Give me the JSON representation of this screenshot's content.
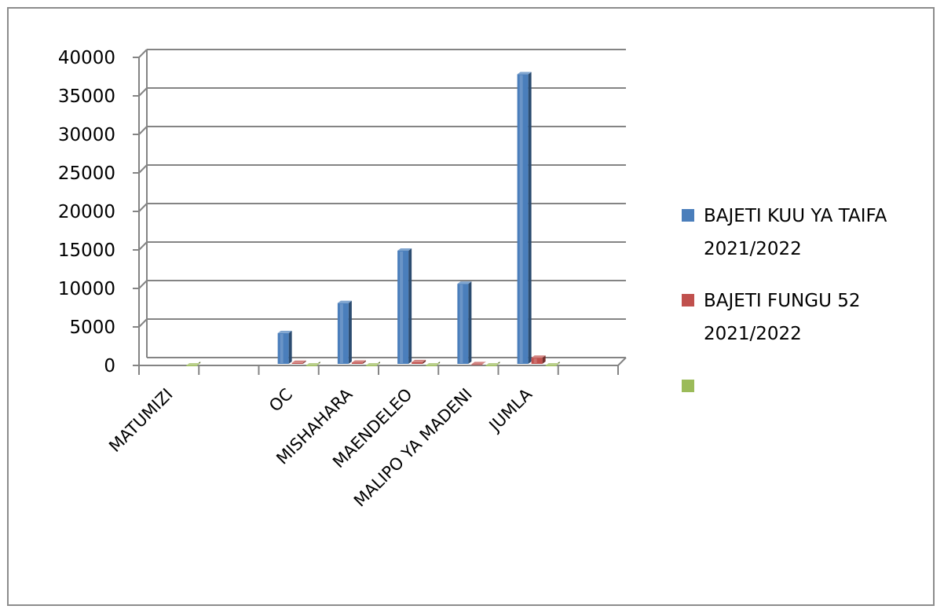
{
  "chart_data": {
    "type": "bar",
    "categories": [
      "MATUMIZI",
      "OC",
      "MISHAHARA",
      "MAENDELEO",
      "MALIPO YA MADENI",
      "JUMLA"
    ],
    "series": [
      {
        "name": "BAJETI KUU YA TAIFA 2021/2022",
        "color": "#4a7ebb",
        "values": [
          null,
          4200,
          8100,
          14900,
          10600,
          37800
        ]
      },
      {
        "name": "BAJETI FUNGU 52 2021/2022",
        "color": "#c0504d",
        "values": [
          null,
          330,
          360,
          420,
          160,
          1000
        ]
      },
      {
        "name": "",
        "color": "#9bbb59",
        "values": [
          0,
          0,
          0,
          0,
          0,
          0
        ]
      }
    ],
    "yticks": [
      0,
      5000,
      10000,
      15000,
      20000,
      25000,
      30000,
      35000,
      40000
    ],
    "ylim": [
      0,
      40000
    ],
    "grid": true,
    "legend_position": "right",
    "title": "",
    "xlabel": "",
    "ylabel": ""
  },
  "legend": [
    {
      "lines": [
        "BAJETI KUU YA TAIFA",
        "2021/2022"
      ]
    },
    {
      "lines": [
        "BAJETI FUNGU 52",
        "2021/2022"
      ]
    },
    {
      "lines": []
    }
  ]
}
